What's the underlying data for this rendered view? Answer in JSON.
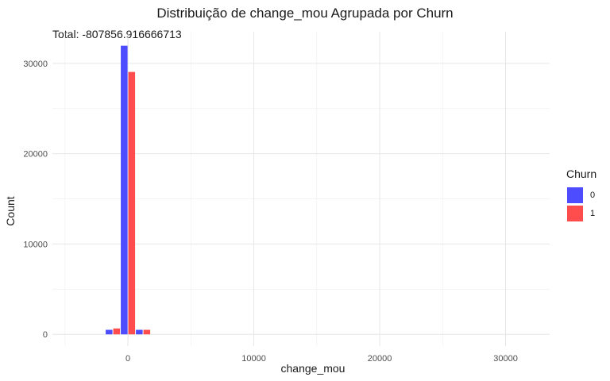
{
  "chart_data": {
    "type": "bar",
    "title": "Distribuição de change_mou Agrupada por Churn",
    "subtitle": "Total: -807856.916666713",
    "xlabel": "change_mou",
    "ylabel": "Count",
    "xlim": [
      -6000,
      33500
    ],
    "ylim": [
      -1300,
      33500
    ],
    "x_ticks": [
      0,
      10000,
      20000,
      30000
    ],
    "y_ticks": [
      0,
      10000,
      20000,
      30000
    ],
    "x_tick_labels": [
      "0",
      "10000",
      "20000",
      "30000"
    ],
    "y_tick_labels": [
      "0",
      "10000",
      "20000",
      "30000"
    ],
    "grid": true,
    "legend_position": "right",
    "legend_title": "Churn",
    "bin_width": 1200,
    "series": [
      {
        "name": "0",
        "color": "#4d4dff",
        "bins": [
          {
            "center": -1200,
            "value": 500
          },
          {
            "center": 0,
            "value": 31950
          },
          {
            "center": 1200,
            "value": 500
          }
        ]
      },
      {
        "name": "1",
        "color": "#ff4d4d",
        "bins": [
          {
            "center": -1200,
            "value": 650
          },
          {
            "center": 0,
            "value": 29050
          },
          {
            "center": 1200,
            "value": 500
          }
        ]
      }
    ]
  }
}
